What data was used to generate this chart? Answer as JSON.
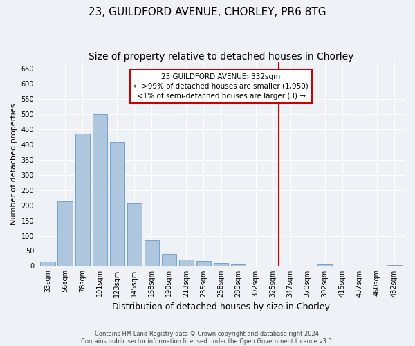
{
  "title": "23, GUILDFORD AVENUE, CHORLEY, PR6 8TG",
  "subtitle": "Size of property relative to detached houses in Chorley",
  "xlabel": "Distribution of detached houses by size in Chorley",
  "ylabel": "Number of detached properties",
  "footer_line1": "Contains HM Land Registry data © Crown copyright and database right 2024.",
  "footer_line2": "Contains public sector information licensed under the Open Government Licence v3.0.",
  "categories": [
    "33sqm",
    "56sqm",
    "78sqm",
    "101sqm",
    "123sqm",
    "145sqm",
    "168sqm",
    "190sqm",
    "213sqm",
    "235sqm",
    "258sqm",
    "280sqm",
    "302sqm",
    "325sqm",
    "347sqm",
    "370sqm",
    "392sqm",
    "415sqm",
    "437sqm",
    "460sqm",
    "482sqm"
  ],
  "values": [
    15,
    212,
    437,
    500,
    408,
    205,
    86,
    40,
    21,
    17,
    11,
    6,
    2,
    0,
    0,
    0,
    5,
    0,
    0,
    0,
    4
  ],
  "bar_color": "#aec6de",
  "bar_edge_color": "#6699cc",
  "vline_color": "#cc0000",
  "annotation_box_color": "#cc0000",
  "annotation_label": "23 GUILDFORD AVENUE: 332sqm",
  "annotation_line1": "← >99% of detached houses are smaller (1,950)",
  "annotation_line2": "<1% of semi-detached houses are larger (3) →",
  "ylim": [
    0,
    670
  ],
  "yticks": [
    0,
    50,
    100,
    150,
    200,
    250,
    300,
    350,
    400,
    450,
    500,
    550,
    600,
    650
  ],
  "bg_color": "#eef2f7",
  "plot_bg_color": "#eef2f7",
  "grid_color": "#ffffff",
  "title_fontsize": 11,
  "subtitle_fontsize": 10,
  "xlabel_fontsize": 9,
  "ylabel_fontsize": 8,
  "tick_fontsize": 7,
  "annotation_fontsize": 7.5,
  "footer_fontsize": 6
}
